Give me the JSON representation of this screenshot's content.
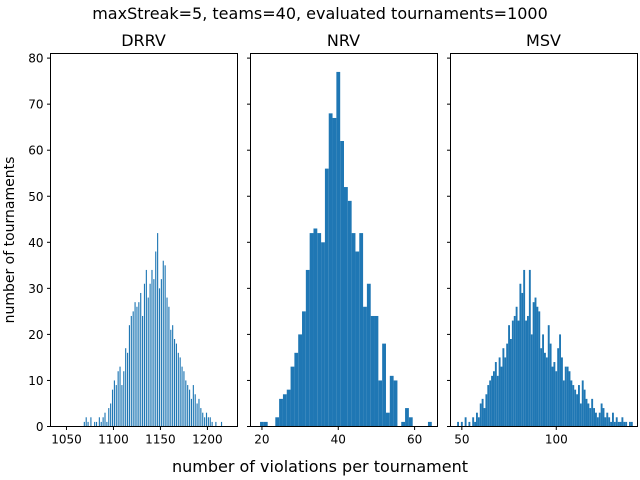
{
  "figure": {
    "suptitle": "maxStreak=5, teams=40, evaluated tournaments=1000",
    "xlabel": "number of violations per tournament",
    "ylabel": "number of tournaments",
    "bar_color": "#1f77b4"
  },
  "chart_data": [
    {
      "type": "bar",
      "title": "DRRV",
      "xlim": [
        1033,
        1232
      ],
      "ylim": [
        0,
        81
      ],
      "xticks": [
        1050,
        1100,
        1150,
        1200
      ],
      "yticks": [
        0,
        10,
        20,
        30,
        40,
        50,
        60,
        70,
        80
      ],
      "bar_width": 1.2,
      "x": [
        1069,
        1071,
        1073,
        1076,
        1080,
        1082,
        1085,
        1087,
        1089,
        1091,
        1093,
        1095,
        1097,
        1099,
        1101,
        1103,
        1105,
        1107,
        1109,
        1111,
        1113,
        1115,
        1117,
        1119,
        1121,
        1123,
        1125,
        1127,
        1129,
        1131,
        1133,
        1135,
        1137,
        1139,
        1141,
        1143,
        1145,
        1147,
        1149,
        1151,
        1153,
        1155,
        1157,
        1159,
        1161,
        1163,
        1165,
        1167,
        1169,
        1171,
        1173,
        1175,
        1177,
        1179,
        1181,
        1183,
        1185,
        1187,
        1189,
        1191,
        1193,
        1195,
        1197,
        1199,
        1201,
        1203,
        1205,
        1209,
        1215
      ],
      "values": [
        1,
        2,
        1,
        2,
        1,
        1,
        2,
        1,
        2,
        3,
        1,
        4,
        5,
        8,
        10,
        9,
        12,
        13,
        9,
        12,
        17,
        16,
        22,
        24,
        25,
        27,
        26,
        27,
        29,
        24,
        31,
        34,
        28,
        31,
        34,
        32,
        38,
        42,
        30,
        32,
        36,
        35,
        28,
        26,
        21,
        22,
        19,
        18,
        16,
        15,
        13,
        12,
        10,
        9,
        8,
        6,
        9,
        7,
        5,
        6,
        4,
        3,
        2,
        3,
        2,
        2,
        1,
        1,
        1
      ]
    },
    {
      "type": "bar",
      "title": "NRV",
      "xlim": [
        17,
        66
      ],
      "ylim": [
        0,
        81
      ],
      "xticks": [
        20,
        40,
        60
      ],
      "yticks": [
        0,
        10,
        20,
        30,
        40,
        50,
        60,
        70,
        80
      ],
      "bar_width": 1.0,
      "x": [
        20,
        21,
        24,
        25,
        26,
        27,
        28,
        29,
        30,
        31,
        32,
        33,
        34,
        35,
        36,
        37,
        38,
        39,
        40,
        41,
        42,
        43,
        44,
        45,
        46,
        47,
        48,
        49,
        50,
        51,
        52,
        53,
        54,
        55,
        57,
        58,
        59,
        64
      ],
      "values": [
        1,
        1,
        2,
        6,
        7,
        8,
        13,
        16,
        20,
        25,
        34,
        42,
        43,
        42,
        40,
        56,
        68,
        67,
        77,
        62,
        52,
        49,
        42,
        38,
        42,
        26,
        31,
        24,
        24,
        10,
        18,
        3,
        11,
        10,
        1,
        4,
        2,
        1
      ]
    },
    {
      "type": "bar",
      "title": "MSV",
      "xlim": [
        44,
        143
      ],
      "ylim": [
        0,
        81
      ],
      "xticks": [
        50,
        100
      ],
      "yticks": [
        0,
        10,
        20,
        30,
        40,
        50,
        60,
        70,
        80
      ],
      "bar_width": 1.0,
      "x": [
        48,
        50,
        52,
        54,
        56,
        57,
        58,
        59,
        60,
        61,
        62,
        63,
        64,
        65,
        66,
        67,
        68,
        69,
        70,
        71,
        72,
        73,
        74,
        75,
        76,
        77,
        78,
        79,
        80,
        81,
        82,
        83,
        84,
        85,
        86,
        87,
        88,
        89,
        90,
        91,
        92,
        93,
        94,
        95,
        96,
        97,
        98,
        99,
        100,
        101,
        102,
        103,
        104,
        105,
        106,
        107,
        108,
        109,
        110,
        111,
        112,
        113,
        114,
        115,
        116,
        117,
        118,
        119,
        120,
        121,
        122,
        123,
        124,
        125,
        126,
        127,
        128,
        129,
        130,
        131,
        132,
        133,
        134,
        135,
        136,
        137,
        139,
        140
      ],
      "values": [
        1,
        1,
        2,
        1,
        2,
        1,
        3,
        2,
        5,
        6,
        4,
        7,
        9,
        10,
        11,
        12,
        14,
        11,
        15,
        13,
        17,
        15,
        18,
        22,
        19,
        23,
        24,
        26,
        23,
        31,
        29,
        34,
        23,
        24,
        34,
        20,
        27,
        28,
        26,
        25,
        17,
        20,
        16,
        15,
        22,
        18,
        13,
        14,
        12,
        17,
        20,
        15,
        10,
        13,
        13,
        12,
        10,
        9,
        8,
        7,
        9,
        5,
        10,
        8,
        6,
        5,
        4,
        6,
        4,
        3,
        2,
        3,
        5,
        4,
        2,
        3,
        2,
        1,
        3,
        1,
        2,
        1,
        1,
        2,
        1,
        1,
        1,
        1
      ]
    }
  ]
}
